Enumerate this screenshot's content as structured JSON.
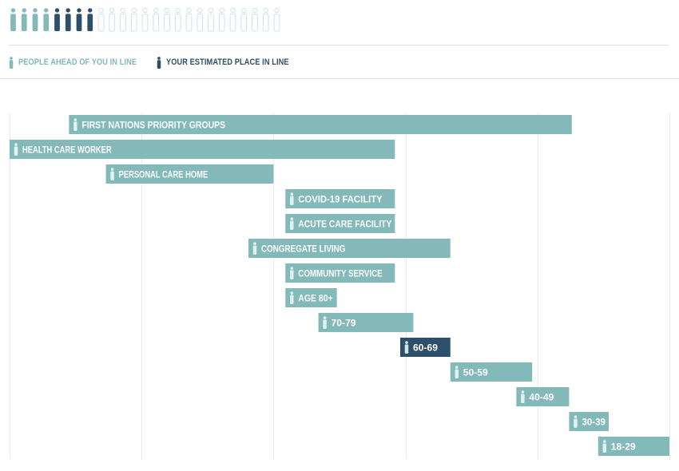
{
  "colors": {
    "ahead": "#83b9b9",
    "you": "#2e4f6a",
    "remaining": "#cfe3e2",
    "bar": "#83b9b9",
    "bar_highlight": "#2e4f6a",
    "grid": "#e3eded",
    "separator": "#d7e6e5"
  },
  "people_row": {
    "icon": "person-icon",
    "ahead_count": 4,
    "you_count": 4,
    "remaining_count": 17
  },
  "legend": {
    "ahead_label": "PEOPLE AHEAD OF YOU IN LINE",
    "you_label": "YOUR ESTIMATED PLACE IN LINE"
  },
  "chart_data": {
    "type": "bar",
    "orientation": "horizontal-timeline",
    "grid": true,
    "xlim": [
      0,
      5
    ],
    "bars": [
      {
        "label": "FIRST NATIONS PRIORITY GROUPS",
        "start": 0.45,
        "end": 4.26,
        "highlight": false
      },
      {
        "label": "HEALTH CARE WORKER",
        "start": 0.0,
        "end": 2.92,
        "highlight": false
      },
      {
        "label": "PERSONAL CARE HOME",
        "start": 0.73,
        "end": 2.0,
        "highlight": false
      },
      {
        "label": "COVID-19 FACILITY",
        "start": 2.09,
        "end": 2.92,
        "highlight": false
      },
      {
        "label": "ACUTE CARE FACILITY",
        "start": 2.09,
        "end": 2.92,
        "highlight": false
      },
      {
        "label": "CONGREGATE LIVING",
        "start": 1.81,
        "end": 3.34,
        "highlight": false
      },
      {
        "label": "COMMUNITY SERVICE",
        "start": 2.09,
        "end": 2.92,
        "highlight": false
      },
      {
        "label": "AGE 80+",
        "start": 2.09,
        "end": 2.48,
        "highlight": false
      },
      {
        "label": "70-79",
        "start": 2.34,
        "end": 3.06,
        "highlight": false
      },
      {
        "label": "60-69",
        "start": 2.96,
        "end": 3.34,
        "highlight": true
      },
      {
        "label": "50-59",
        "start": 3.34,
        "end": 3.96,
        "highlight": false
      },
      {
        "label": "40-49",
        "start": 3.84,
        "end": 4.24,
        "highlight": false
      },
      {
        "label": "30-39",
        "start": 4.24,
        "end": 4.54,
        "highlight": false
      },
      {
        "label": "18-29",
        "start": 4.46,
        "end": 5.0,
        "highlight": false
      }
    ]
  }
}
